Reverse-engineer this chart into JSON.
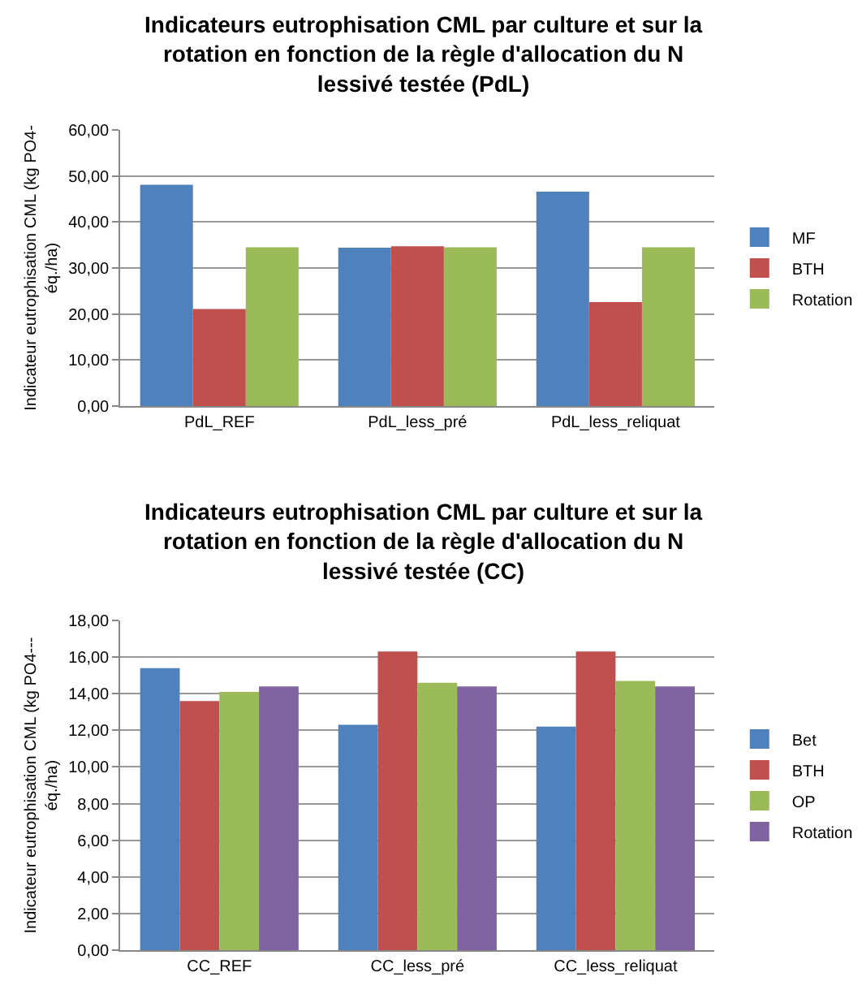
{
  "chart_data": [
    {
      "type": "bar",
      "title": "Indicateurs eutrophisation CML par culture et sur la rotation en fonction de la règle d'allocation du N lessivé testée (PdL)",
      "ylabel": "Indicateur eutrophisation CML (kg PO4-\néq./ha)",
      "categories": [
        "PdL_REF",
        "PdL_less_pré",
        "PdL_less_reliquat"
      ],
      "series": [
        {
          "name": "MF",
          "color": "#4f81bd",
          "values": [
            48.1,
            34.4,
            46.6
          ]
        },
        {
          "name": "BTH",
          "color": "#c0504d",
          "values": [
            21.1,
            34.7,
            22.6
          ]
        },
        {
          "name": "Rotation",
          "color": "#9bbb59",
          "values": [
            34.5,
            34.5,
            34.5
          ]
        }
      ],
      "ylim": [
        0,
        60
      ],
      "yticks": [
        {
          "value": 0,
          "label": "0,00"
        },
        {
          "value": 10,
          "label": "10,00"
        },
        {
          "value": 20,
          "label": "20,00"
        },
        {
          "value": 30,
          "label": "30,00"
        },
        {
          "value": 40,
          "label": "40,00"
        },
        {
          "value": 50,
          "label": "50,00"
        },
        {
          "value": 60,
          "label": "60,00"
        }
      ],
      "grid": "y",
      "legend": "right"
    },
    {
      "type": "bar",
      "title": "Indicateurs eutrophisation CML par culture et sur la rotation en fonction de la règle d'allocation du N lessivé testée (CC)",
      "ylabel": "Indicateur eutrophisation CML (kg PO4---\néq./ha)",
      "categories": [
        "CC_REF",
        "CC_less_pré",
        "CC_less_reliquat"
      ],
      "series": [
        {
          "name": "Bet",
          "color": "#4f81bd",
          "values": [
            15.4,
            12.3,
            12.2
          ]
        },
        {
          "name": "BTH",
          "color": "#c0504d",
          "values": [
            13.6,
            16.3,
            16.3
          ]
        },
        {
          "name": "OP",
          "color": "#9bbb59",
          "values": [
            14.1,
            14.6,
            14.7
          ]
        },
        {
          "name": "Rotation",
          "color": "#8064a2",
          "values": [
            14.4,
            14.4,
            14.4
          ]
        }
      ],
      "ylim": [
        0,
        18
      ],
      "yticks": [
        {
          "value": 0,
          "label": "0,00"
        },
        {
          "value": 2,
          "label": "2,00"
        },
        {
          "value": 4,
          "label": "4,00"
        },
        {
          "value": 6,
          "label": "6,00"
        },
        {
          "value": 8,
          "label": "8,00"
        },
        {
          "value": 10,
          "label": "10,00"
        },
        {
          "value": 12,
          "label": "12,00"
        },
        {
          "value": 14,
          "label": "14,00"
        },
        {
          "value": 16,
          "label": "16,00"
        },
        {
          "value": 18,
          "label": "18,00"
        }
      ],
      "grid": "y",
      "legend": "right"
    }
  ]
}
